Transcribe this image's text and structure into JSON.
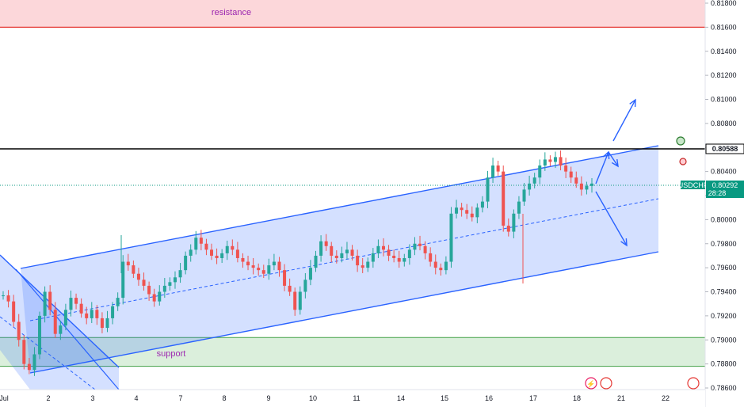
{
  "chart_data": {
    "type": "candlestick",
    "symbol": "USDCHF",
    "ylim": [
      0.786,
      0.819
    ],
    "y_ticks": [
      "0.81800",
      "0.81600",
      "0.81400",
      "0.81200",
      "0.81000",
      "0.80800",
      "0.80600",
      "0.80400",
      "0.80200",
      "0.80000",
      "0.79800",
      "0.79600",
      "0.79400",
      "0.79200",
      "0.79000",
      "0.78800",
      "0.78600"
    ],
    "x_ticks": [
      "Jul",
      "2",
      "3",
      "4",
      "7",
      "8",
      "9",
      "10",
      "11",
      "14",
      "15",
      "16",
      "17",
      "18",
      "21",
      "22"
    ],
    "last_price": {
      "symbol": "USDCHF",
      "value": "0.80292",
      "countdown": "28:28"
    },
    "level": {
      "value": "0.80588",
      "color": "#000000"
    },
    "resistance": {
      "label": "resistance",
      "top": 0.819,
      "bottom": 0.816
    },
    "support": {
      "label": "support",
      "top": 0.7902,
      "bottom": 0.7878
    },
    "close_series": [
      0.7937,
      0.7932,
      0.7915,
      0.79,
      0.788,
      0.7875,
      0.7888,
      0.792,
      0.794,
      0.7925,
      0.7905,
      0.7912,
      0.7925,
      0.7935,
      0.793,
      0.7922,
      0.7918,
      0.7925,
      0.7918,
      0.791,
      0.7918,
      0.7928,
      0.7935,
      0.7965,
      0.7962,
      0.7955,
      0.795,
      0.7945,
      0.7938,
      0.7932,
      0.794,
      0.7945,
      0.7948,
      0.7952,
      0.7958,
      0.797,
      0.7975,
      0.7985,
      0.798,
      0.7975,
      0.797,
      0.7968,
      0.7972,
      0.7978,
      0.7975,
      0.7968,
      0.7965,
      0.7962,
      0.796,
      0.7958,
      0.7955,
      0.7962,
      0.7965,
      0.7958,
      0.7945,
      0.794,
      0.7925,
      0.794,
      0.795,
      0.796,
      0.797,
      0.7982,
      0.7978,
      0.797,
      0.7968,
      0.7972,
      0.7975,
      0.797,
      0.7962,
      0.796,
      0.7965,
      0.7972,
      0.7978,
      0.7975,
      0.797,
      0.7968,
      0.7965,
      0.7968,
      0.7975,
      0.798,
      0.7978,
      0.7972,
      0.7965,
      0.796,
      0.7958,
      0.7965,
      0.8005,
      0.801,
      0.8008,
      0.8005,
      0.8002,
      0.801,
      0.8015,
      0.8035,
      0.8045,
      0.804,
      0.7995,
      0.799,
      0.8005,
      0.8015,
      0.8025,
      0.803,
      0.8035,
      0.8045,
      0.805,
      0.8048,
      0.8052,
      0.8045,
      0.804,
      0.8035,
      0.803,
      0.8025,
      0.8028,
      0.803
    ],
    "channel": {
      "upper": [
        [
          "Jul 1 07:00",
          0.796
        ],
        [
          "Jul 19 06:00",
          0.8063
        ]
      ],
      "lower": [
        [
          "Jul 1 00:30",
          0.7872
        ],
        [
          "Jul 19 06:00",
          0.7974
        ]
      ],
      "mid": [
        [
          "Jul 1 00:30",
          0.7916
        ],
        [
          "Jul 19 06:00",
          0.8018
        ]
      ]
    },
    "projection_arrows": [
      {
        "from": [
          0.8028,
          "Jul 18 18:00"
        ],
        "to": [
          0.8044,
          "Jul 19 00:00"
        ]
      },
      {
        "from": [
          0.8044,
          "Jul 19 00:00"
        ],
        "to": [
          0.81,
          "Jul 19 18:00"
        ]
      },
      {
        "from": [
          0.8025,
          "Jul 18 18:00"
        ],
        "to": [
          0.798,
          "Jul 19 18:00"
        ]
      }
    ],
    "falling_channel": {
      "color": "#2962ff"
    },
    "colors": {
      "up": "#26a69a",
      "down": "#ef5350",
      "channel": "#2962ff",
      "channel_fill": "rgba(41,98,255,0.20)",
      "resistance_fill": "rgba(242,54,69,0.20)",
      "support_fill": "rgba(76,175,80,0.20)",
      "price_tag": "#089981"
    }
  }
}
